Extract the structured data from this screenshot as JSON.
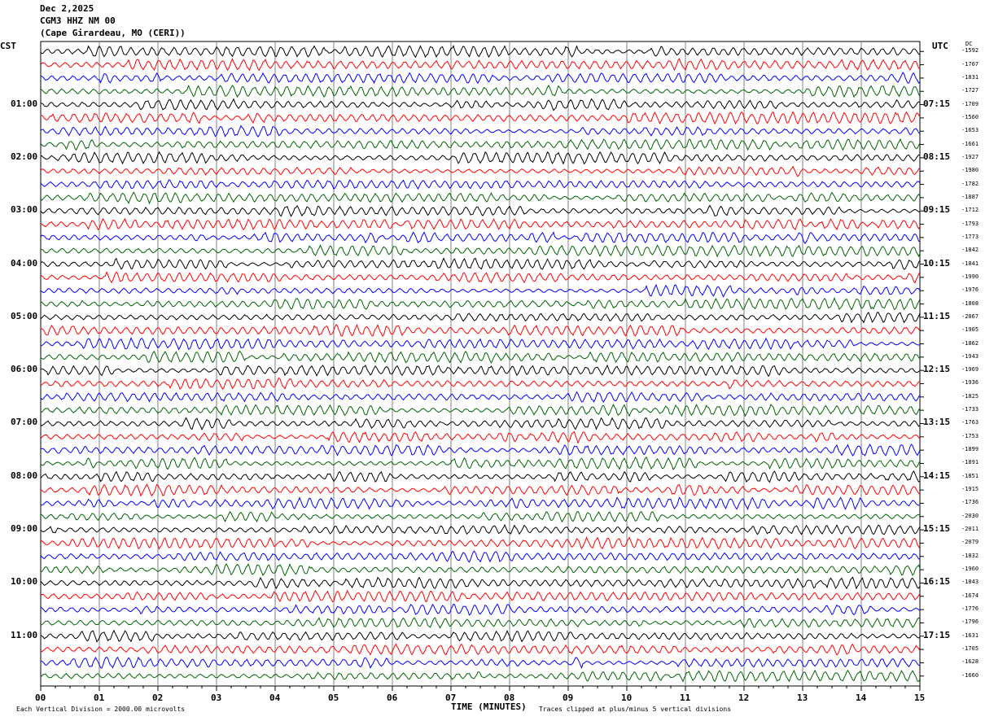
{
  "header": {
    "date": "Dec 2,2025",
    "station": "CGM3 HHZ NM 00",
    "location": "(Cape Girardeau, MO (CERI))"
  },
  "left_tz": "CST",
  "right_tz": "UTC",
  "dc_label": "DC",
  "footer": {
    "scale": "Each Vertical Division = 2000.00 microvolts",
    "clip": "Traces clipped at plus/minus 5 vertical divisions"
  },
  "colors": {
    "trace_cycle": [
      "#000000",
      "#ff0000",
      "#0000ff",
      "#006400"
    ]
  },
  "chart_data": {
    "type": "line",
    "xlabel": "TIME (MINUTES)",
    "xlim": [
      0,
      15
    ],
    "x_ticks": [
      "00",
      "01",
      "02",
      "03",
      "04",
      "05",
      "06",
      "07",
      "08",
      "09",
      "10",
      "11",
      "12",
      "13",
      "14",
      "15"
    ],
    "left_hour_labels": [
      "01:00",
      "02:00",
      "03:00",
      "04:00",
      "05:00",
      "06:00",
      "07:00",
      "08:00",
      "09:00",
      "10:00",
      "11:00"
    ],
    "right_hour_labels": [
      "07:15",
      "08:15",
      "09:15",
      "10:15",
      "11:15",
      "12:15",
      "13:15",
      "14:15",
      "15:15",
      "16:15",
      "17:15"
    ],
    "dc_offsets": [
      1592,
      1707,
      1831,
      1727,
      1709,
      1560,
      1653,
      1661,
      1927,
      1980,
      1782,
      1887,
      1712,
      1793,
      1773,
      1842,
      1841,
      1990,
      1976,
      1808,
      2067,
      1905,
      1862,
      1943,
      1969,
      1936,
      1825,
      1733,
      1763,
      1753,
      1899,
      1891,
      1851,
      1915,
      1736,
      2030,
      2011,
      2079,
      1832,
      1960,
      1843,
      1674,
      1776,
      1796,
      1631,
      1705,
      1628,
      1660
    ],
    "grid": true
  }
}
